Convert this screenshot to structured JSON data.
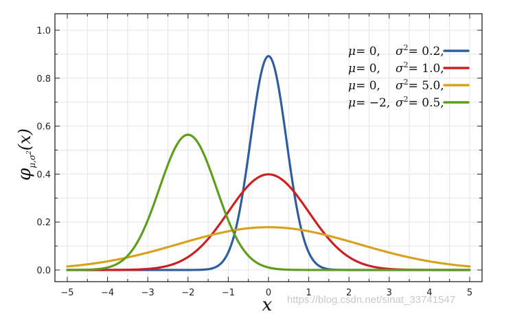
{
  "chart_data": {
    "type": "line",
    "title": "",
    "xlabel": "x",
    "ylabel": {
      "phi": "φ",
      "sub": "μ,σ",
      "sup": "2",
      "arg": "(x)"
    },
    "xlim": [
      -5,
      5
    ],
    "ylim": [
      0,
      1.0
    ],
    "x_ticks": [
      "−5",
      "−4",
      "−3",
      "−2",
      "−1",
      "0",
      "1",
      "2",
      "3",
      "4",
      "5"
    ],
    "y_ticks": [
      "0.0",
      "0.2",
      "0.4",
      "0.6",
      "0.8",
      "1.0"
    ],
    "grid": true,
    "legend_position": "top-right",
    "series": [
      {
        "name": "μ = 0,  σ² = 0.2,",
        "mu_label": "μ",
        "mu_value": "= 0,",
        "sigma_label": "σ",
        "sigma_sup": "2",
        "sigma_value": "= 0.2,",
        "mu": 0,
        "variance": 0.2,
        "color": "#2f5d9e"
      },
      {
        "name": "μ = 0,  σ² = 1.0,",
        "mu_label": "μ",
        "mu_value": "= 0,",
        "sigma_label": "σ",
        "sigma_sup": "2",
        "sigma_value": "= 1.0,",
        "mu": 0,
        "variance": 1.0,
        "color": "#cc2121"
      },
      {
        "name": "μ = 0,  σ² = 5.0,",
        "mu_label": "μ",
        "mu_value": "= 0,",
        "sigma_label": "σ",
        "sigma_sup": "2",
        "sigma_value": "= 5.0,",
        "mu": 0,
        "variance": 5.0,
        "color": "#d8a21f"
      },
      {
        "name": "μ = −2, σ² = 0.5,",
        "mu_label": "μ",
        "mu_value": "= −2,",
        "sigma_label": "σ",
        "sigma_sup": "2",
        "sigma_value": "= 0.5,",
        "mu": -2,
        "variance": 0.5,
        "color": "#5d9e1f"
      }
    ]
  },
  "watermark": "https://blog.csdn.net/sinat_33741547"
}
